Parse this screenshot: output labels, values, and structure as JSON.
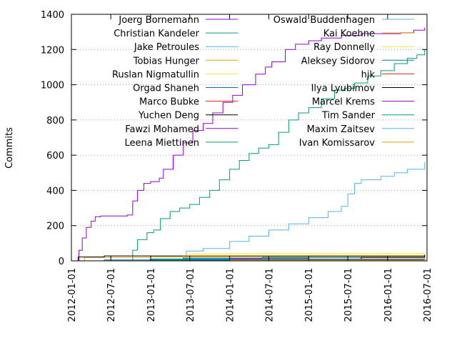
{
  "chart_data": {
    "type": "line",
    "title": "",
    "xlabel": "",
    "ylabel": "Commits",
    "x_type": "date",
    "xlim": [
      "2012-01-01",
      "2016-07-01"
    ],
    "ylim": [
      0,
      1400
    ],
    "x_ticks": [
      "2012-01-01",
      "2012-07-01",
      "2013-01-01",
      "2013-07-01",
      "2014-01-01",
      "2014-07-01",
      "2015-01-01",
      "2015-07-01",
      "2016-01-01",
      "2016-07-01"
    ],
    "y_ticks": [
      0,
      200,
      400,
      600,
      800,
      1000,
      1200,
      1400
    ],
    "grid": "horizontal-dotted",
    "legend_position": "top (two columns)",
    "series": [
      {
        "name": "Joerg Bornemann",
        "color": "#9400d3",
        "points": [
          [
            "2012-01-01",
            0
          ],
          [
            "2012-01-20",
            0
          ],
          [
            "2012-02-05",
            60
          ],
          [
            "2012-02-20",
            130
          ],
          [
            "2012-03-10",
            190
          ],
          [
            "2012-04-01",
            225
          ],
          [
            "2012-04-20",
            250
          ],
          [
            "2012-05-15",
            255
          ],
          [
            "2012-07-01",
            255
          ],
          [
            "2012-09-15",
            260
          ],
          [
            "2012-10-10",
            340
          ],
          [
            "2012-11-01",
            400
          ],
          [
            "2012-12-01",
            440
          ],
          [
            "2013-01-01",
            450
          ],
          [
            "2013-02-10",
            470
          ],
          [
            "2013-03-01",
            520
          ],
          [
            "2013-04-15",
            600
          ],
          [
            "2013-06-01",
            670
          ],
          [
            "2013-07-15",
            740
          ],
          [
            "2013-09-01",
            780
          ],
          [
            "2013-10-15",
            840
          ],
          [
            "2013-12-01",
            900
          ],
          [
            "2014-01-15",
            940
          ],
          [
            "2014-03-01",
            1000
          ],
          [
            "2014-05-01",
            1060
          ],
          [
            "2014-06-15",
            1100
          ],
          [
            "2014-07-15",
            1130
          ],
          [
            "2014-09-15",
            1200
          ],
          [
            "2014-11-01",
            1230
          ],
          [
            "2015-01-01",
            1250
          ],
          [
            "2015-03-01",
            1265
          ],
          [
            "2015-06-01",
            1280
          ],
          [
            "2015-09-01",
            1290
          ],
          [
            "2015-12-01",
            1290
          ],
          [
            "2016-03-01",
            1295
          ],
          [
            "2016-05-01",
            1310
          ],
          [
            "2016-06-20",
            1325
          ]
        ]
      },
      {
        "name": "Christian Kandeler",
        "color": "#009e73",
        "points": [
          [
            "2012-01-01",
            0
          ],
          [
            "2012-09-15",
            0
          ],
          [
            "2012-10-10",
            60
          ],
          [
            "2012-11-01",
            120
          ],
          [
            "2012-12-15",
            160
          ],
          [
            "2013-01-15",
            175
          ],
          [
            "2013-02-15",
            240
          ],
          [
            "2013-04-01",
            280
          ],
          [
            "2013-05-15",
            300
          ],
          [
            "2013-07-01",
            320
          ],
          [
            "2013-08-15",
            360
          ],
          [
            "2013-10-01",
            400
          ],
          [
            "2013-11-15",
            460
          ],
          [
            "2014-01-01",
            520
          ],
          [
            "2014-02-15",
            570
          ],
          [
            "2014-04-01",
            610
          ],
          [
            "2014-05-15",
            640
          ],
          [
            "2014-07-01",
            660
          ],
          [
            "2014-08-15",
            730
          ],
          [
            "2014-10-01",
            800
          ],
          [
            "2014-11-15",
            840
          ],
          [
            "2015-01-01",
            870
          ],
          [
            "2015-03-01",
            920
          ],
          [
            "2015-05-01",
            970
          ],
          [
            "2015-06-15",
            980
          ],
          [
            "2015-08-01",
            1010
          ],
          [
            "2015-10-01",
            1050
          ],
          [
            "2015-12-01",
            1080
          ],
          [
            "2016-02-01",
            1120
          ],
          [
            "2016-04-01",
            1150
          ],
          [
            "2016-05-15",
            1170
          ],
          [
            "2016-06-20",
            1200
          ]
        ]
      },
      {
        "name": "Jake Petroules",
        "color": "#56b4e9",
        "points": [
          [
            "2012-01-01",
            0
          ],
          [
            "2013-06-01",
            0
          ],
          [
            "2013-06-15",
            55
          ],
          [
            "2013-09-01",
            70
          ],
          [
            "2014-01-01",
            110
          ],
          [
            "2014-04-01",
            140
          ],
          [
            "2014-07-01",
            175
          ],
          [
            "2014-10-01",
            210
          ],
          [
            "2015-01-01",
            245
          ],
          [
            "2015-04-01",
            280
          ],
          [
            "2015-06-01",
            310
          ],
          [
            "2015-07-01",
            380
          ],
          [
            "2015-08-01",
            440
          ],
          [
            "2015-09-01",
            460
          ],
          [
            "2015-12-01",
            480
          ],
          [
            "2016-02-01",
            500
          ],
          [
            "2016-04-01",
            520
          ],
          [
            "2016-06-20",
            560
          ]
        ]
      },
      {
        "name": "Tobias Hunger",
        "color": "#e69f00",
        "points": [
          [
            "2012-01-01",
            0
          ],
          [
            "2012-03-01",
            20
          ],
          [
            "2013-01-01",
            22
          ],
          [
            "2014-01-01",
            24
          ],
          [
            "2015-01-01",
            25
          ],
          [
            "2016-06-20",
            25
          ]
        ]
      },
      {
        "name": "Ruslan Nigmatullin",
        "color": "#f0e442",
        "points": [
          [
            "2012-01-01",
            0
          ],
          [
            "2013-05-01",
            0
          ],
          [
            "2013-07-01",
            40
          ],
          [
            "2014-01-01",
            42
          ],
          [
            "2016-06-20",
            45
          ]
        ]
      },
      {
        "name": "Orgad Shaneh",
        "color": "#0072b2",
        "points": [
          [
            "2012-01-01",
            0
          ],
          [
            "2012-06-01",
            5
          ],
          [
            "2013-01-01",
            10
          ],
          [
            "2014-01-01",
            15
          ],
          [
            "2015-01-01",
            20
          ],
          [
            "2016-06-20",
            30
          ]
        ]
      },
      {
        "name": "Marco Bubke",
        "color": "#e51e10",
        "points": [
          [
            "2012-01-01",
            0
          ],
          [
            "2013-01-01",
            2
          ],
          [
            "2014-06-01",
            4
          ],
          [
            "2016-06-20",
            6
          ]
        ]
      },
      {
        "name": "Yuchen Deng",
        "color": "#000000",
        "points": [
          [
            "2012-01-01",
            0
          ],
          [
            "2012-02-01",
            22
          ],
          [
            "2012-06-01",
            28
          ],
          [
            "2016-06-20",
            28
          ]
        ]
      },
      {
        "name": "Fawzi Mohamed",
        "color": "#9400d3",
        "points": [
          [
            "2012-01-01",
            0
          ],
          [
            "2013-01-01",
            5
          ],
          [
            "2014-01-01",
            10
          ],
          [
            "2016-06-20",
            12
          ]
        ]
      },
      {
        "name": "Leena Miettinen",
        "color": "#009e73",
        "points": [
          [
            "2012-01-01",
            0
          ],
          [
            "2013-01-01",
            4
          ],
          [
            "2014-06-01",
            8
          ],
          [
            "2016-06-20",
            10
          ]
        ]
      },
      {
        "name": "Oswald Buddenhagen",
        "color": "#56b4e9",
        "points": [
          [
            "2012-01-01",
            0
          ],
          [
            "2014-01-01",
            3
          ],
          [
            "2016-06-20",
            8
          ]
        ]
      },
      {
        "name": "Kai Koehne",
        "color": "#e69f00",
        "points": [
          [
            "2012-01-01",
            0
          ],
          [
            "2013-06-01",
            30
          ],
          [
            "2016-06-20",
            35
          ]
        ]
      },
      {
        "name": "Ray Donnelly",
        "color": "#f0e442",
        "points": [
          [
            "2012-01-01",
            0
          ],
          [
            "2014-06-01",
            0
          ],
          [
            "2015-01-01",
            2
          ],
          [
            "2016-06-20",
            3
          ]
        ]
      },
      {
        "name": "Aleksey Sidorov",
        "color": "#0072b2",
        "points": [
          [
            "2012-01-01",
            0
          ],
          [
            "2013-06-01",
            15
          ],
          [
            "2014-06-01",
            20
          ],
          [
            "2016-06-20",
            22
          ]
        ]
      },
      {
        "name": "hjk",
        "color": "#e51e10",
        "points": [
          [
            "2012-01-01",
            0
          ],
          [
            "2014-01-01",
            2
          ],
          [
            "2016-06-20",
            5
          ]
        ]
      },
      {
        "name": "Ilya Lyubimov",
        "color": "#000000",
        "points": [
          [
            "2012-01-01",
            0
          ],
          [
            "2015-06-01",
            0
          ],
          [
            "2015-09-01",
            20
          ],
          [
            "2016-06-20",
            35
          ]
        ]
      },
      {
        "name": "Marcel Krems",
        "color": "#9400d3",
        "points": [
          [
            "2012-01-01",
            0
          ],
          [
            "2013-06-01",
            5
          ],
          [
            "2016-06-20",
            8
          ]
        ]
      },
      {
        "name": "Tim Sander",
        "color": "#009e73",
        "points": [
          [
            "2012-01-01",
            0
          ],
          [
            "2013-01-01",
            6
          ],
          [
            "2015-01-01",
            8
          ],
          [
            "2016-06-20",
            10
          ]
        ]
      },
      {
        "name": "Maxim Zaitsev",
        "color": "#56b4e9",
        "points": [
          [
            "2012-01-01",
            0
          ],
          [
            "2015-01-01",
            0
          ],
          [
            "2016-01-01",
            3
          ],
          [
            "2016-06-20",
            5
          ]
        ]
      },
      {
        "name": "Ivan Komissarov",
        "color": "#e69f00",
        "points": [
          [
            "2012-01-01",
            0
          ],
          [
            "2013-01-01",
            0
          ],
          [
            "2014-01-01",
            4
          ],
          [
            "2016-06-20",
            8
          ]
        ]
      }
    ]
  }
}
